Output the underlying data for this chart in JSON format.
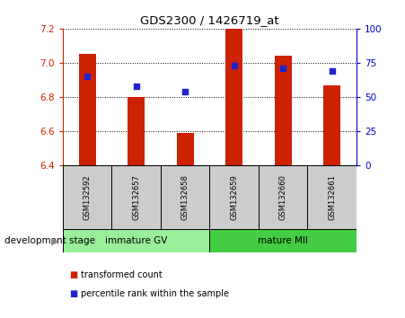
{
  "title": "GDS2300 / 1426719_at",
  "samples": [
    "GSM132592",
    "GSM132657",
    "GSM132658",
    "GSM132659",
    "GSM132660",
    "GSM132661"
  ],
  "bar_values": [
    7.05,
    6.8,
    6.59,
    7.2,
    7.04,
    6.87
  ],
  "bar_bottom": 6.4,
  "percentile_right_axis": [
    65,
    58,
    54,
    73,
    71,
    69
  ],
  "bar_color": "#cc2200",
  "dot_color": "#2222cc",
  "ylim": [
    6.4,
    7.2
  ],
  "yticks": [
    6.4,
    6.6,
    6.8,
    7.0,
    7.2
  ],
  "right_yticks": [
    0,
    25,
    50,
    75,
    100
  ],
  "right_ylim": [
    0,
    100
  ],
  "groups": [
    {
      "label": "immature GV",
      "start": 0,
      "end": 3,
      "color": "#99ee99"
    },
    {
      "label": "mature MII",
      "start": 3,
      "end": 6,
      "color": "#44cc44"
    }
  ],
  "group_row_label": "development stage",
  "legend_bar_label": "transformed count",
  "legend_dot_label": "percentile rank within the sample",
  "left_axis_color": "#cc2200",
  "right_axis_color": "#0000cc",
  "grid_color": "#000000",
  "sample_bg_color": "#cccccc",
  "bar_width": 0.35
}
